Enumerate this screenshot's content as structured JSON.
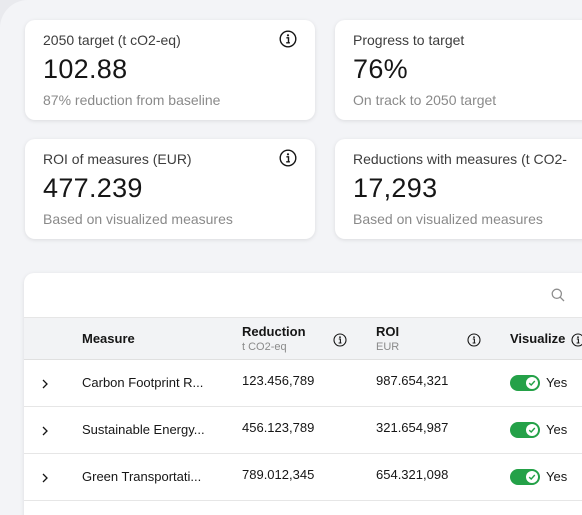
{
  "kpis": [
    {
      "label": "2050 target (t cO2-eq)",
      "value": "102.88",
      "sub": "87% reduction from baseline",
      "has_info": true
    },
    {
      "label": "Progress to target",
      "value": "76%",
      "sub": "On track to 2050 target",
      "has_info": false
    },
    {
      "label": "ROI of measures (EUR)",
      "value": "477.239",
      "sub": "Based on visualized measures",
      "has_info": true
    },
    {
      "label": "Reductions with measures (t CO2-",
      "value": "17,293",
      "sub": "Based on visualized measures",
      "has_info": false
    }
  ],
  "table": {
    "columns": {
      "measure": "Measure",
      "reduction": "Reduction",
      "reduction_unit": "t CO2-eq",
      "roi": "ROI",
      "roi_unit": "EUR",
      "visualize": "Visualize"
    },
    "rows": [
      {
        "measure": "Carbon Footprint R...",
        "reduction": "123.456,789",
        "roi": "987.654,321",
        "visualize": "Yes",
        "toggle_on": true
      },
      {
        "measure": "Sustainable Energy...",
        "reduction": "456.123,789",
        "roi": "321.654,987",
        "visualize": "Yes",
        "toggle_on": true
      },
      {
        "measure": "Green Transportati...",
        "reduction": "789.012,345",
        "roi": "654.321,098",
        "visualize": "Yes",
        "toggle_on": true
      }
    ]
  },
  "icons": {
    "info": "info-icon",
    "search": "search-icon",
    "expand": "chevron-right-icon",
    "check": "check-icon"
  },
  "colors": {
    "toggle_on": "#24a148",
    "background": "#f3f4f7",
    "muted_text": "#8a8a8a"
  }
}
